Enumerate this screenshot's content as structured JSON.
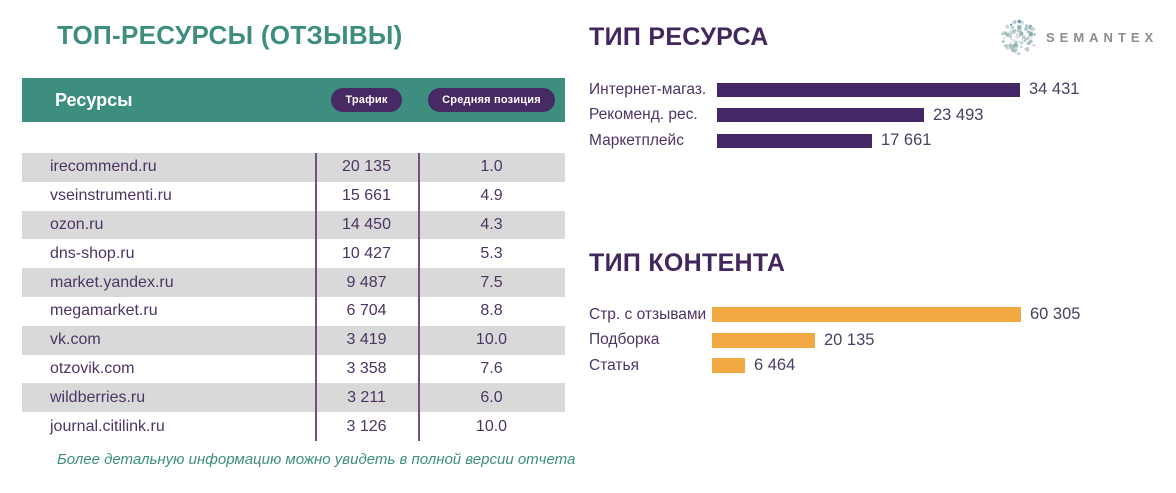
{
  "left_panel": {
    "title": "ТОП-РЕСУРСЫ (ОТЗЫВЫ)",
    "footnote": "Более детальную информацию можно увидеть в полной версии отчета",
    "table": {
      "header": {
        "resources": "Ресурсы",
        "traffic_badge": "Трафик",
        "avg_position_badge": "Средняя позиция"
      },
      "rows": [
        {
          "resource": "irecommend.ru",
          "traffic": "20 135",
          "avg_position": "1.0"
        },
        {
          "resource": "vseinstrumenti.ru",
          "traffic": "15 661",
          "avg_position": "4.9"
        },
        {
          "resource": "ozon.ru",
          "traffic": "14 450",
          "avg_position": "4.3"
        },
        {
          "resource": "dns-shop.ru",
          "traffic": "10 427",
          "avg_position": "5.3"
        },
        {
          "resource": "market.yandex.ru",
          "traffic": "9 487",
          "avg_position": "7.5"
        },
        {
          "resource": "megamarket.ru",
          "traffic": "6 704",
          "avg_position": "8.8"
        },
        {
          "resource": "vk.com",
          "traffic": "3 419",
          "avg_position": "10.0"
        },
        {
          "resource": "otzovik.com",
          "traffic": "3 358",
          "avg_position": "7.6"
        },
        {
          "resource": "wildberries.ru",
          "traffic": "3 211",
          "avg_position": "6.0"
        },
        {
          "resource": "journal.citilink.ru",
          "traffic": "3 126",
          "avg_position": "10.0"
        }
      ]
    }
  },
  "chart_data": [
    {
      "type": "bar",
      "orientation": "horizontal",
      "title": "ТИП РЕСУРСА",
      "categories": [
        "Интернет-магаз.",
        "Рекоменд. рес.",
        "Маркетплейс"
      ],
      "values": [
        34431,
        23493,
        17661
      ],
      "value_labels": [
        "34 431",
        "23 493",
        "17 661"
      ],
      "bar_color": "#452765",
      "xlim": [
        0,
        34431
      ],
      "grid": false,
      "value_label_position": "right-of-bar"
    },
    {
      "type": "bar",
      "orientation": "horizontal",
      "title": "ТИП КОНТЕНТА",
      "categories": [
        "Стр. с отзывами",
        "Подборка",
        "Статья"
      ],
      "values": [
        60305,
        20135,
        6464
      ],
      "value_labels": [
        "60 305",
        "20 135",
        "6 464"
      ],
      "bar_color": "#F2A843",
      "xlim": [
        0,
        60305
      ],
      "grid": false,
      "value_label_position": "right-of-bar"
    }
  ],
  "logo": {
    "text": "SEMANTEX",
    "icon": "dotted-sphere-icon"
  },
  "colors": {
    "teal_accent": "#3E8E80",
    "heading_purple": "#42265E",
    "bar_purple": "#452765",
    "bar_orange": "#F2A843",
    "row_gray": "#D9D9D9",
    "badge_purple": "#472963",
    "table_text_purple": "#4d3464",
    "logo_gray": "#8D8D8D"
  }
}
